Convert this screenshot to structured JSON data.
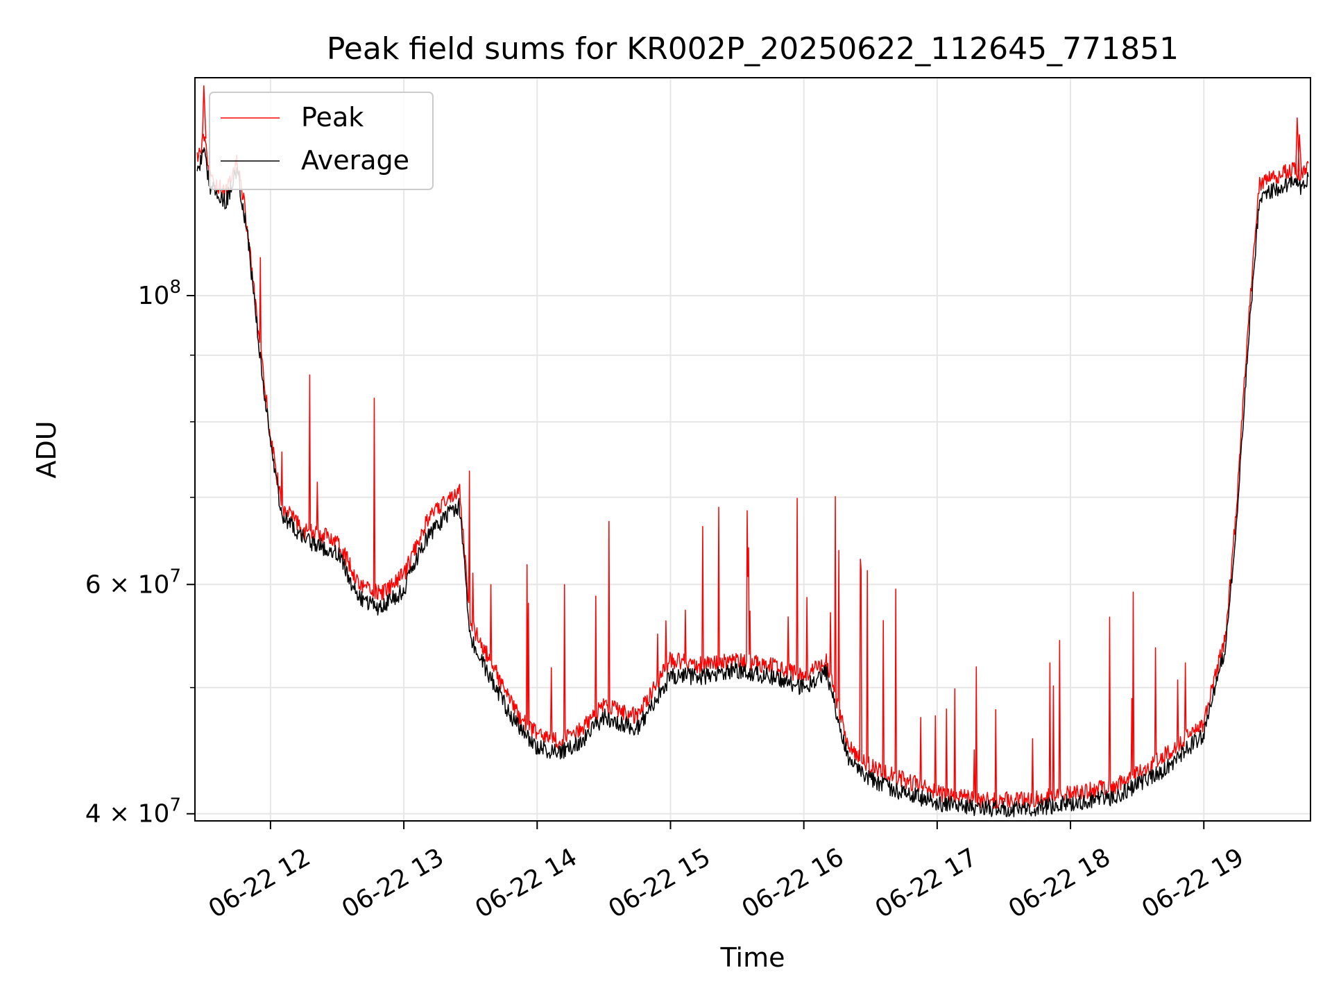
{
  "chart_data": {
    "type": "line",
    "title": "Peak field sums for KR002P_20250622_112645_771851",
    "xlabel": "Time",
    "ylabel": "ADU",
    "yscale": "log",
    "grid": true,
    "legend_position": "top-left",
    "x_unit": "hour",
    "xlim": [
      "2025-06-22 11:26",
      "2025-06-22 19:48"
    ],
    "ylim": [
      39500000,
      147000000
    ],
    "x_ticks": [
      "06-22 12",
      "06-22 13",
      "06-22 14",
      "06-22 15",
      "06-22 16",
      "06-22 17",
      "06-22 18",
      "06-22 19"
    ],
    "x_tick_hours": [
      12,
      13,
      14,
      15,
      16,
      17,
      18,
      19
    ],
    "y_major_ticks": [
      {
        "value": 40000000,
        "mantissa": "4",
        "exponent": "7"
      },
      {
        "value": 60000000,
        "mantissa": "6",
        "exponent": "7"
      },
      {
        "value": 100000000,
        "mantissa": "",
        "exponent": "8"
      }
    ],
    "y_minor_ticks": [
      50000000,
      70000000,
      80000000,
      90000000
    ],
    "series": [
      {
        "name": "Peak",
        "color": "#ff0000",
        "x": [
          "11:27",
          "11:30",
          "11:33",
          "11:40",
          "11:45",
          "11:48",
          "11:50",
          "11:55",
          "12:00",
          "12:05",
          "12:15",
          "12:30",
          "12:40",
          "12:50",
          "13:00",
          "13:10",
          "13:20",
          "13:25",
          "13:30",
          "13:40",
          "13:50",
          "14:00",
          "14:10",
          "14:20",
          "14:30",
          "14:45",
          "15:00",
          "15:15",
          "15:30",
          "15:45",
          "16:00",
          "16:10",
          "16:20",
          "16:30",
          "16:45",
          "17:00",
          "17:20",
          "17:40",
          "18:00",
          "18:20",
          "18:40",
          "19:00",
          "19:10",
          "19:15",
          "19:20",
          "19:25",
          "19:30",
          "19:40",
          "19:45",
          "19:47"
        ],
        "values": [
          127000000,
          132000000,
          123000000,
          120000000,
          127000000,
          118000000,
          111000000,
          92000000,
          78000000,
          69000000,
          66000000,
          65000000,
          60000000,
          59000000,
          61000000,
          67000000,
          70000000,
          71000000,
          56000000,
          52000000,
          48000000,
          46000000,
          45500000,
          46500000,
          48500000,
          47500000,
          52500000,
          52000000,
          52500000,
          52000000,
          51000000,
          52500000,
          45000000,
          43500000,
          42500000,
          41500000,
          41000000,
          41000000,
          41500000,
          42000000,
          44000000,
          47000000,
          55000000,
          70000000,
          95000000,
          122000000,
          123000000,
          125000000,
          124000000,
          127000000
        ]
      },
      {
        "name": "Average",
        "color": "#000000",
        "x": [
          "11:27",
          "11:30",
          "11:33",
          "11:40",
          "11:45",
          "11:48",
          "11:50",
          "11:55",
          "12:00",
          "12:05",
          "12:15",
          "12:30",
          "12:40",
          "12:50",
          "13:00",
          "13:10",
          "13:20",
          "13:25",
          "13:30",
          "13:40",
          "13:50",
          "14:00",
          "14:10",
          "14:20",
          "14:30",
          "14:45",
          "15:00",
          "15:15",
          "15:30",
          "15:45",
          "16:00",
          "16:10",
          "16:20",
          "16:30",
          "16:45",
          "17:00",
          "17:20",
          "17:40",
          "18:00",
          "18:20",
          "18:40",
          "19:00",
          "19:10",
          "19:15",
          "19:20",
          "19:25",
          "19:30",
          "19:40",
          "19:45",
          "19:47"
        ],
        "values": [
          125000000,
          129000000,
          121000000,
          118000000,
          125000000,
          116000000,
          110000000,
          91000000,
          77000000,
          68000000,
          65000000,
          63500000,
          58500000,
          57500000,
          59500000,
          65000000,
          68000000,
          69000000,
          54500000,
          50500000,
          47000000,
          45000000,
          44500000,
          45500000,
          47500000,
          46500000,
          51000000,
          51000000,
          51500000,
          51000000,
          50000000,
          51500000,
          44000000,
          42500000,
          41500000,
          40800000,
          40400000,
          40300000,
          40800000,
          41200000,
          43000000,
          46000000,
          54000000,
          68000000,
          92000000,
          119000000,
          120000000,
          122000000,
          121000000,
          124000000
        ]
      }
    ],
    "peak_extremes": [
      {
        "x": "11:30",
        "value": 145000000
      },
      {
        "x": "19:42",
        "value": 137000000
      },
      {
        "x": "19:43",
        "value": 133000000
      }
    ]
  }
}
